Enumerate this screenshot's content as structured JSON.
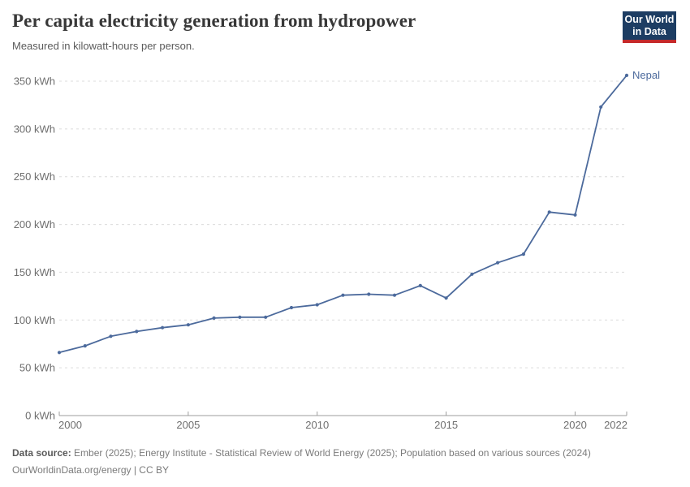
{
  "header": {
    "title": "Per capita electricity generation from hydropower",
    "subtitle": "Measured in kilowatt-hours per person.",
    "logo": {
      "line1": "Our World",
      "line2": "in Data"
    }
  },
  "footer": {
    "source_label": "Data source:",
    "source_text": "Ember (2025); Energy Institute - Statistical Review of World Energy (2025); Population based on various sources (2024)",
    "license_text": "OurWorldinData.org/energy | CC BY"
  },
  "colors": {
    "series": "#4c6a9c",
    "logo_bg": "#1d3d63",
    "logo_accent": "#c5292a",
    "grid": "#dcdcdc",
    "axis": "#9e9e9e",
    "tick_text": "#6e6e6e"
  },
  "chart_data": {
    "type": "line",
    "title": "Per capita electricity generation from hydropower",
    "subtitle": "Measured in kilowatt-hours per person.",
    "xlabel": "",
    "ylabel": "kWh per person",
    "xlim": [
      2000,
      2022
    ],
    "ylim": [
      0,
      362
    ],
    "x_ticks": [
      2000,
      2005,
      2010,
      2015,
      2020,
      2022
    ],
    "y_ticks": [
      0,
      50,
      100,
      150,
      200,
      250,
      300,
      350
    ],
    "y_tick_suffix": " kWh",
    "grid": "horizontal-dashed",
    "legend": "end-of-line-label",
    "series": [
      {
        "name": "Nepal",
        "x": [
          2000,
          2001,
          2002,
          2003,
          2004,
          2005,
          2006,
          2007,
          2008,
          2009,
          2010,
          2011,
          2012,
          2013,
          2014,
          2015,
          2016,
          2017,
          2018,
          2019,
          2020,
          2021,
          2022
        ],
        "values": [
          66,
          73,
          83,
          88,
          92,
          95,
          102,
          103,
          103,
          113,
          116,
          126,
          127,
          126,
          136,
          123,
          148,
          160,
          169,
          213,
          210,
          323,
          356
        ]
      }
    ]
  }
}
